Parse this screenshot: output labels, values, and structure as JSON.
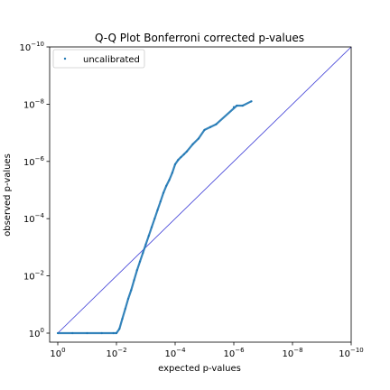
{
  "chart_data": {
    "type": "scatter",
    "title": "Q-Q Plot Bonferroni corrected p-values",
    "xlabel": "expected p-values",
    "ylabel": "observed p-values",
    "x_scale": "log-reversed",
    "y_scale": "log-reversed",
    "xlim": [
      1,
      1e-10
    ],
    "ylim": [
      1,
      1e-10
    ],
    "x_ticks": [
      {
        "value": 0,
        "base": "10",
        "exp": "0"
      },
      {
        "value": -2,
        "base": "10",
        "exp": "−2"
      },
      {
        "value": -4,
        "base": "10",
        "exp": "−4"
      },
      {
        "value": -6,
        "base": "10",
        "exp": "−6"
      },
      {
        "value": -8,
        "base": "10",
        "exp": "−8"
      },
      {
        "value": -10,
        "base": "10",
        "exp": "−10"
      }
    ],
    "y_ticks": [
      {
        "value": 0,
        "base": "10",
        "exp": "0"
      },
      {
        "value": -2,
        "base": "10",
        "exp": "−2"
      },
      {
        "value": -4,
        "base": "10",
        "exp": "−4"
      },
      {
        "value": -6,
        "base": "10",
        "exp": "−6"
      },
      {
        "value": -8,
        "base": "10",
        "exp": "−8"
      },
      {
        "value": -10,
        "base": "10",
        "exp": "−10"
      }
    ],
    "legend": {
      "position": "top-left"
    },
    "grid": false,
    "reference_line": {
      "from_log10": [
        0,
        0
      ],
      "to_log10": [
        -10,
        -10
      ],
      "color": "#3b3bd6"
    },
    "series": [
      {
        "name": "uncalibrated",
        "color": "#1f77b4",
        "points_log10": [
          [
            0.0,
            0.0
          ],
          [
            -0.5,
            0.0
          ],
          [
            -1.0,
            0.0
          ],
          [
            -1.5,
            0.0
          ],
          [
            -1.9,
            0.0
          ],
          [
            -2.0,
            0.0
          ],
          [
            -2.1,
            -0.15
          ],
          [
            -2.2,
            -0.5
          ],
          [
            -2.3,
            -0.85
          ],
          [
            -2.4,
            -1.2
          ],
          [
            -2.5,
            -1.5
          ],
          [
            -2.6,
            -1.85
          ],
          [
            -2.7,
            -2.2
          ],
          [
            -2.8,
            -2.5
          ],
          [
            -2.9,
            -2.8
          ],
          [
            -3.0,
            -3.1
          ],
          [
            -3.1,
            -3.4
          ],
          [
            -3.2,
            -3.7
          ],
          [
            -3.3,
            -4.0
          ],
          [
            -3.4,
            -4.3
          ],
          [
            -3.5,
            -4.6
          ],
          [
            -3.6,
            -4.9
          ],
          [
            -3.7,
            -5.15
          ],
          [
            -3.8,
            -5.35
          ],
          [
            -3.9,
            -5.6
          ],
          [
            -4.0,
            -5.9
          ],
          [
            -4.1,
            -6.05
          ],
          [
            -4.2,
            -6.15
          ],
          [
            -4.3,
            -6.25
          ],
          [
            -4.4,
            -6.35
          ],
          [
            -4.6,
            -6.6
          ],
          [
            -4.8,
            -6.8
          ],
          [
            -5.0,
            -7.1
          ],
          [
            -5.2,
            -7.2
          ],
          [
            -5.4,
            -7.3
          ],
          [
            -6.1,
            -7.95
          ],
          [
            -6.3,
            -7.95
          ],
          [
            -6.6,
            -8.1
          ],
          [
            -6.0,
            -7.9
          ]
        ]
      }
    ]
  }
}
